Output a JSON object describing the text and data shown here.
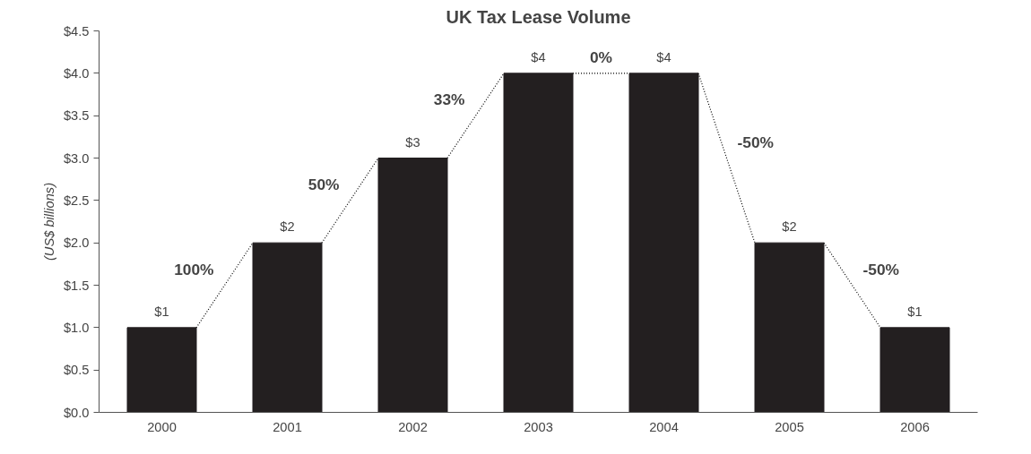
{
  "chart_data": {
    "type": "bar",
    "title": "UK Tax Lease Volume",
    "ylabel": "(US$ billions)",
    "categories": [
      "2000",
      "2001",
      "2002",
      "2003",
      "2004",
      "2005",
      "2006"
    ],
    "series": [
      {
        "type": "bar",
        "color": "#231f20",
        "values": [
          1,
          2,
          3,
          4,
          4,
          2,
          1
        ],
        "value_labels": [
          "$1",
          "$2",
          "$3",
          "$4",
          "$4",
          "$2",
          "$1"
        ]
      }
    ],
    "annotations": [
      "100%",
      "50%",
      "33%",
      "0%",
      "-50%",
      "-50%"
    ],
    "line_style": "dotted",
    "ylim": [
      0,
      4.5
    ],
    "yticks": [
      {
        "value": 0,
        "label": "$0.0"
      },
      {
        "value": 0.5,
        "label": "$0.5"
      },
      {
        "value": 1,
        "label": "$1.0"
      },
      {
        "value": 1.5,
        "label": "$1.5"
      },
      {
        "value": 2,
        "label": "$2.0"
      },
      {
        "value": 2.5,
        "label": "$2.5"
      },
      {
        "value": 3,
        "label": "$3.0"
      },
      {
        "value": 3.5,
        "label": "$3.5"
      },
      {
        "value": 4,
        "label": "$4.0"
      },
      {
        "value": 4.5,
        "label": "$4.5"
      }
    ],
    "grid": false
  }
}
